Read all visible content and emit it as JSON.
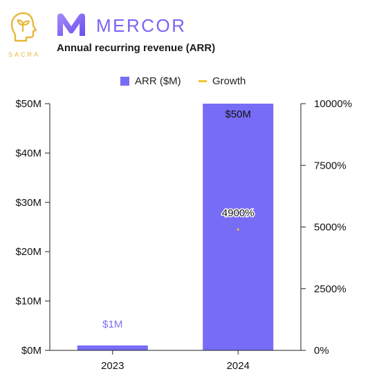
{
  "header": {
    "brand_name": "SACRA",
    "company_name": "MERCOR",
    "subtitle": "Annual recurring revenue (ARR)"
  },
  "colors": {
    "bar": "#776CF5",
    "bar_label_light": "#7C6FF0",
    "growth": "#F2C230",
    "brand_sacra": "#E8B73A",
    "brand_mercor": "#7C62F5"
  },
  "chart_data": {
    "type": "bar",
    "categories": [
      "2023",
      "2024"
    ],
    "series": [
      {
        "name": "ARR ($M)",
        "axis": "left",
        "values": [
          1,
          50
        ],
        "data_labels": [
          "$1M",
          "$50M"
        ]
      },
      {
        "name": "Growth",
        "axis": "right",
        "render": "line",
        "values": [
          null,
          4900
        ],
        "data_labels": [
          "",
          "4900%"
        ]
      }
    ],
    "y_left": {
      "lim": [
        0,
        50
      ],
      "ticks": [
        0,
        10,
        20,
        30,
        40,
        50
      ],
      "tick_labels": [
        "$0M",
        "$10M",
        "$20M",
        "$30M",
        "$40M",
        "$50M"
      ]
    },
    "y_right": {
      "lim": [
        0,
        10000
      ],
      "ticks": [
        0,
        2500,
        5000,
        7500,
        10000
      ],
      "tick_labels": [
        "0%",
        "2500%",
        "5000%",
        "7500%",
        "10000%"
      ]
    },
    "legend_position": "top-center",
    "grid": false
  }
}
